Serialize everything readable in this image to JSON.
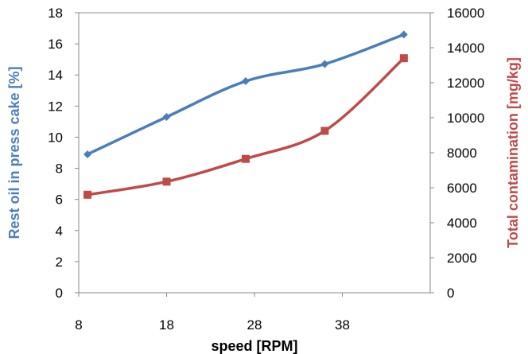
{
  "chart_data": {
    "type": "line",
    "title": "",
    "xlabel": "speed [RPM]",
    "ylabel_left": "Rest oil in press cake [%]",
    "ylabel_right": "Total contamination [mg/kg]",
    "xlim": [
      8,
      48
    ],
    "x_ticks": [
      "8",
      "18",
      "28",
      "38"
    ],
    "ylim_left": [
      0,
      18
    ],
    "y_ticks_left": [
      "0",
      "2",
      "4",
      "6",
      "8",
      "10",
      "12",
      "14",
      "16",
      "18"
    ],
    "ylim_right": [
      0,
      16000
    ],
    "y_ticks_right": [
      "0",
      "2000",
      "4000",
      "6000",
      "8000",
      "10000",
      "12000",
      "14000",
      "16000"
    ],
    "grid": false,
    "legend": "none",
    "series": [
      {
        "axis": "left",
        "color": "#4A7EBB",
        "marker": "diamond",
        "x": [
          9,
          18,
          27,
          36,
          45
        ],
        "values": [
          8.9,
          11.3,
          13.6,
          14.7,
          16.6
        ]
      },
      {
        "axis": "right",
        "color": "#BE4B48",
        "marker": "square",
        "x": [
          9,
          18,
          27,
          36,
          45
        ],
        "values": [
          5600,
          6350,
          7650,
          9250,
          13400
        ]
      }
    ]
  }
}
